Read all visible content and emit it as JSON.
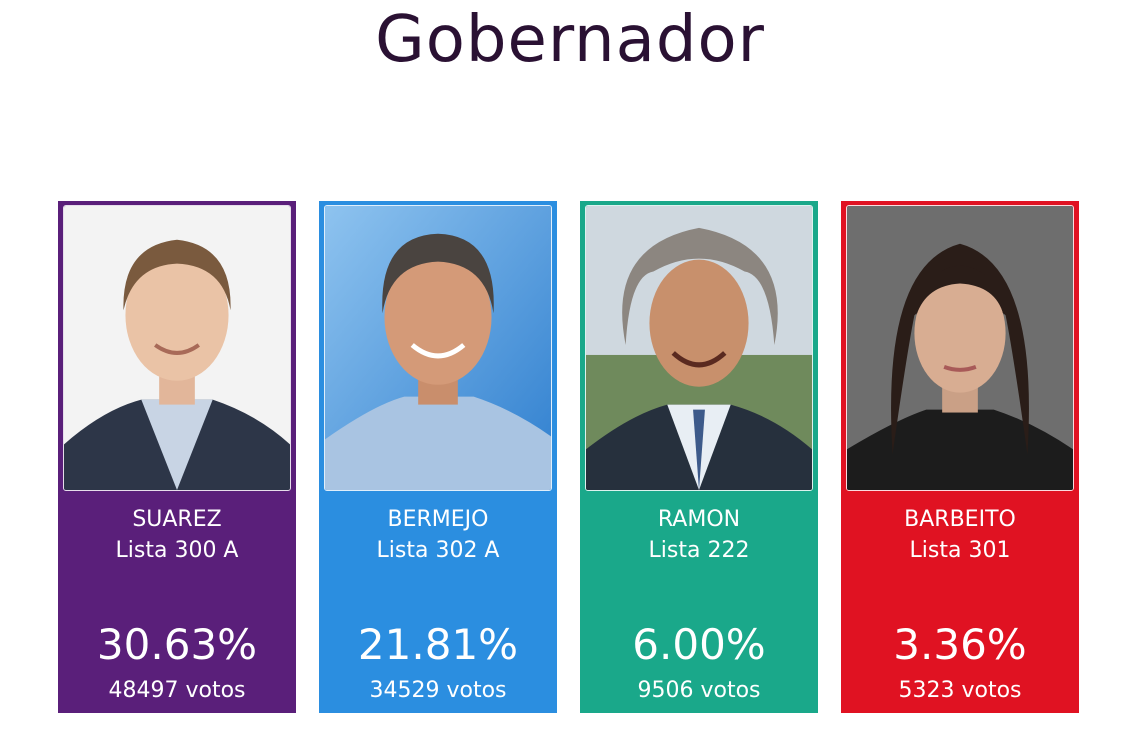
{
  "title": "Gobernador",
  "candidates": [
    {
      "name": "SUAREZ",
      "lista": "Lista 300 A",
      "percent": "30.63%",
      "votes": "48497 votos",
      "color": "#5a1f7a"
    },
    {
      "name": "BERMEJO",
      "lista": "Lista 302 A",
      "percent": "21.81%",
      "votes": "34529 votos",
      "color": "#2b8ee0"
    },
    {
      "name": "RAMON",
      "lista": "Lista 222",
      "percent": "6.00%",
      "votes": "9506 votos",
      "color": "#1aa88a"
    },
    {
      "name": "BARBEITO",
      "lista": "Lista 301",
      "percent": "3.36%",
      "votes": "5323 votos",
      "color": "#e01222"
    }
  ]
}
